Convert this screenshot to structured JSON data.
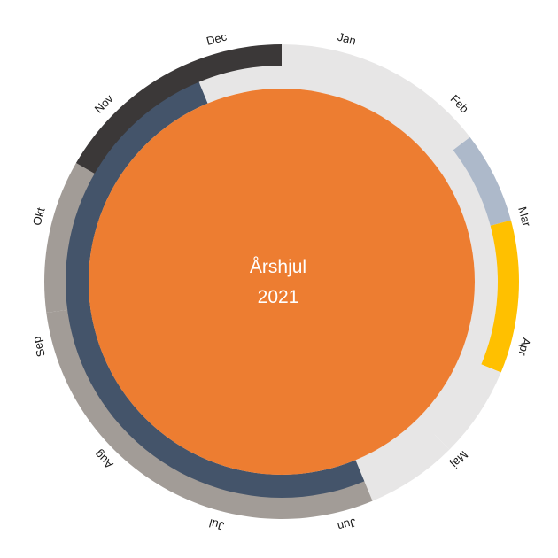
{
  "center": {
    "title": "Årshjul",
    "year": "2021",
    "color": "#ED7D31"
  },
  "months": [
    "Jan",
    "Feb",
    "Mar",
    "Apr",
    "Maj",
    "Jun",
    "Jul",
    "Aug",
    "Sep",
    "Okt",
    "Nov",
    "Dec"
  ],
  "rings": [
    {
      "ring": "outer",
      "segments": [
        {
          "start_month": 0,
          "end_month": 3.5,
          "color": "#E7E6E6"
        },
        {
          "start_month": 3.5,
          "end_month": 5,
          "color": "#ADB9CA"
        },
        {
          "start_month": 5,
          "end_month": 7.5,
          "color": "#FFC000"
        },
        {
          "start_month": 7.5,
          "end_month": 9,
          "color": "#E7E6E6"
        },
        {
          "start_month": 9,
          "end_month": 10.5,
          "color": "#E7E6E6"
        },
        {
          "start_month": 10.5,
          "end_month": 17.5,
          "color": "#A29C97"
        },
        {
          "start_month": 17.5,
          "end_month": 18,
          "color": "#A29C97"
        },
        {
          "start_month": 18,
          "end_month": 20,
          "color": "#A29C97"
        },
        {
          "start_month": 20,
          "end_month": 24,
          "color": "#3B3838"
        }
      ]
    },
    {
      "ring": "inner",
      "segments": [
        {
          "start_month": 0,
          "end_month": 10.5,
          "color": "#E7E6E6"
        },
        {
          "start_month": 10.5,
          "end_month": 22.5,
          "color": "#44546A"
        },
        {
          "start_month": 22.5,
          "end_month": 24,
          "color": "#E7E6E6"
        }
      ]
    }
  ]
}
